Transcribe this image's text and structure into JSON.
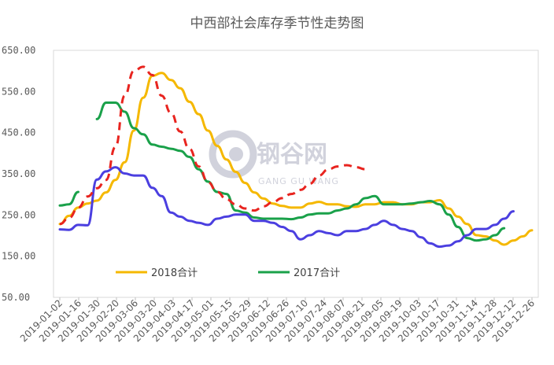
{
  "chart_data": {
    "type": "line",
    "title": "中西部社会库存季节性走势图",
    "ylim": [
      50,
      650
    ],
    "yticks": [
      "50.00",
      "150.00",
      "250.00",
      "350.00",
      "450.00",
      "550.00",
      "650.00"
    ],
    "x_labels": [
      "2019-01-02",
      "2019-01-16",
      "2019-01-30",
      "2019-02-20",
      "2019-03-06",
      "2019-03-20",
      "2019-04-03",
      "2019-04-17",
      "2019-05-01",
      "2019-05-15",
      "2019-05-29",
      "2019-06-12",
      "2019-06-26",
      "2019-07-10",
      "2019-07-24",
      "2019-08-07",
      "2019-08-21",
      "2019-09-05",
      "2019-09-19",
      "2019-10-03",
      "2019-10-17",
      "2019-10-31",
      "2019-11-14",
      "2019-11-28",
      "2019-12-12",
      "2019-12-26"
    ],
    "n_points": 52,
    "grid": false,
    "legend_placement": "bottom-left",
    "series": [
      {
        "name": "2018合计",
        "color": "#F5B800",
        "style": "solid",
        "values": [
          228,
          248,
          268,
          278,
          285,
          305,
          335,
          378,
          455,
          535,
          588,
          595,
          578,
          558,
          525,
          495,
          455,
          418,
          385,
          355,
          328,
          305,
          290,
          278,
          272,
          268,
          268,
          278,
          282,
          276,
          276,
          271,
          270,
          276,
          276,
          281,
          281,
          276,
          276,
          281,
          281,
          286,
          266,
          246,
          228,
          201,
          198,
          188,
          178,
          188,
          198,
          213
        ]
      },
      {
        "name": "2017合计",
        "color": "#1AA14A",
        "style": "solid",
        "values": [
          273,
          276,
          306,
          null,
          483,
          523,
          523,
          501,
          461,
          446,
          421,
          416,
          411,
          406,
          391,
          361,
          331,
          306,
          301,
          261,
          256,
          244,
          241,
          241,
          241,
          240,
          244,
          251,
          254,
          254,
          261,
          266,
          276,
          291,
          296,
          276,
          276,
          276,
          278,
          281,
          284,
          276,
          251,
          221,
          194,
          188,
          191,
          201,
          218,
          null,
          null,
          null
        ]
      },
      {
        "name": "",
        "color": "#4B3FE0",
        "style": "solid",
        "values": [
          215,
          214,
          226,
          225,
          336,
          356,
          366,
          351,
          346,
          346,
          316,
          296,
          256,
          246,
          236,
          231,
          226,
          241,
          246,
          251,
          251,
          236,
          236,
          231,
          221,
          211,
          191,
          201,
          211,
          206,
          201,
          211,
          211,
          216,
          226,
          236,
          226,
          216,
          211,
          196,
          181,
          173,
          176,
          186,
          201,
          216,
          216,
          226,
          241,
          259,
          null,
          null
        ]
      },
      {
        "name": "",
        "color": "#E8241F",
        "style": "dashed",
        "values": [
          228,
          243,
          268,
          295,
          315,
          335,
          415,
          540,
          600,
          610,
          590,
          540,
          498,
          453,
          411,
          368,
          330,
          306,
          288,
          276,
          266,
          261,
          271,
          281,
          291,
          301,
          311,
          326,
          346,
          361,
          368,
          371,
          366,
          361,
          null,
          null,
          null,
          null,
          null,
          null,
          null,
          null,
          null,
          null,
          null,
          null,
          null,
          null,
          null,
          null,
          null,
          null
        ]
      }
    ]
  },
  "watermark": {
    "brand": "钢谷网",
    "brand_en": "GANG GU WANG"
  }
}
